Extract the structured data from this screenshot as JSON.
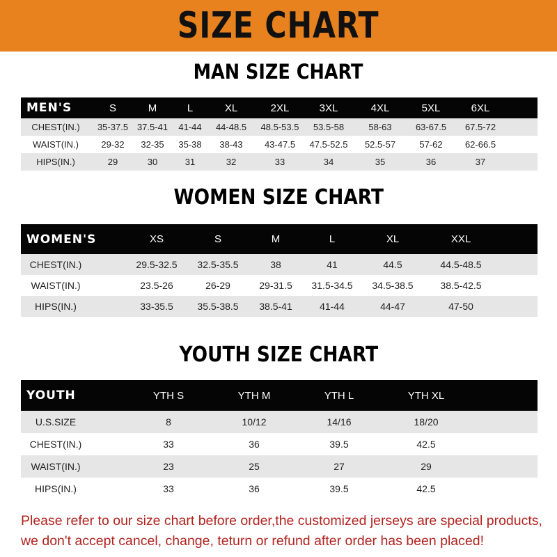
{
  "banner_title": "SIZE CHART",
  "men": {
    "title": "MAN SIZE CHART",
    "header": [
      "MEN'S",
      "S",
      "M",
      "L",
      "XL",
      "2XL",
      "3XL",
      "4XL",
      "5XL",
      "6XL"
    ],
    "rows": [
      [
        "CHEST(IN.)",
        "35-37.5",
        "37.5-41",
        "41-44",
        "44-48.5",
        "48.5-53.5",
        "53.5-58",
        "58-63",
        "63-67.5",
        "67.5-72"
      ],
      [
        "WAIST(IN.)",
        "29-32",
        "32-35",
        "35-38",
        "38-43",
        "43-47.5",
        "47.5-52.5",
        "52.5-57",
        "57-62",
        "62-66.5"
      ],
      [
        "HIPS(IN.)",
        "29",
        "30",
        "31",
        "32",
        "33",
        "34",
        "35",
        "36",
        "37"
      ]
    ]
  },
  "women": {
    "title": "WOMEN SIZE CHART",
    "header": [
      "WOMEN'S",
      "XS",
      "S",
      "M",
      "L",
      "XL",
      "XXL"
    ],
    "rows": [
      [
        "CHEST(IN.)",
        "29.5-32.5",
        "32.5-35.5",
        "38",
        "41",
        "44.5",
        "44.5-48.5"
      ],
      [
        "WAIST(IN.)",
        "23.5-26",
        "26-29",
        "29-31.5",
        "31.5-34.5",
        "34.5-38.5",
        "38.5-42.5"
      ],
      [
        "HIPS(IN.)",
        "33-35.5",
        "35.5-38.5",
        "38.5-41",
        "41-44",
        "44-47",
        "47-50"
      ]
    ]
  },
  "youth": {
    "title": "YOUTH SIZE CHART",
    "header": [
      "YOUTH",
      "YTH S",
      "YTH M",
      "YTH L",
      "YTH XL"
    ],
    "rows": [
      [
        "U.S.SIZE",
        "8",
        "10/12",
        "14/16",
        "18/20"
      ],
      [
        "CHEST(IN.)",
        "33",
        "36",
        "39.5",
        "42.5"
      ],
      [
        "WAIST(IN.)",
        "23",
        "25",
        "27",
        "29"
      ],
      [
        "HIPS(IN.)",
        "33",
        "36",
        "39.5",
        "42.5"
      ]
    ]
  },
  "note": {
    "line1": "Please refer to our size chart before order,the customized jerseys are special products,",
    "line2": "we don't accept cancel, change, teturn or refund after order has been placed!"
  },
  "colors": {
    "banner": "#E8821E",
    "header_row": "#050505",
    "stripe": "#e6e6e6",
    "note": "#B2231F"
  }
}
